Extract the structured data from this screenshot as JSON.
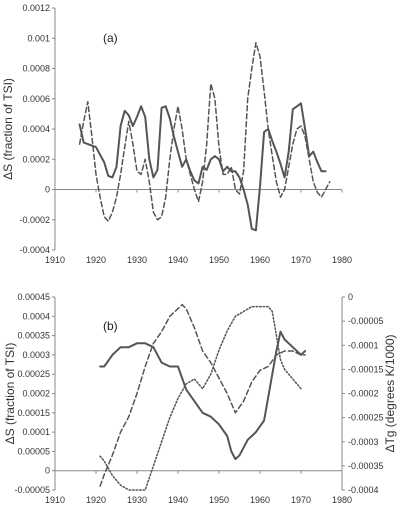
{
  "chart_data": [
    {
      "type": "line",
      "panel_label": "(a)",
      "ylabel": "ΔS (fraction of TSI)",
      "xlabel": "",
      "xlim": [
        1910,
        1980
      ],
      "ylim": [
        -0.0004,
        0.0012
      ],
      "xticks": [
        1910,
        1920,
        1930,
        1940,
        1950,
        1960,
        1970,
        1980
      ],
      "xtick_labels": [
        "1910",
        "1920",
        "1930",
        "1940",
        "1950",
        "1960",
        "1970",
        "1980"
      ],
      "yticks": [
        -0.0004,
        -0.0002,
        0,
        0.0002,
        0.0004,
        0.0006,
        0.0008,
        0.001,
        0.0012
      ],
      "ytick_labels": [
        "-0.0004",
        "-0.0002",
        "0",
        "0.0002",
        "0.0004",
        "0.0006",
        "0.0008",
        "0.001",
        "0.0012"
      ],
      "grid": false,
      "legend": "none",
      "series": [
        {
          "style": "solid",
          "color": "#555555",
          "x": [
            1916,
            1917,
            1920,
            1922,
            1923,
            1924,
            1925,
            1926,
            1927,
            1928,
            1929,
            1930,
            1931,
            1932,
            1933,
            1934,
            1935,
            1936,
            1937,
            1938,
            1939,
            1940,
            1941,
            1942,
            1943,
            1944,
            1945,
            1946,
            1947,
            1948,
            1949,
            1950,
            1951,
            1952,
            1953,
            1954,
            1955,
            1956,
            1957,
            1958,
            1959,
            1960,
            1961,
            1962,
            1963,
            1964,
            1965,
            1966,
            1967,
            1968,
            1969,
            1970,
            1971,
            1972,
            1973,
            1974,
            1975,
            1976
          ],
          "values": [
            0.00043,
            0.00031,
            0.00028,
            0.00018,
            9e-05,
            8e-05,
            0.00015,
            0.00042,
            0.00052,
            0.00049,
            0.00042,
            0.00048,
            0.00055,
            0.00048,
            0.0002,
            8e-05,
            0.00013,
            0.00054,
            0.00055,
            0.00047,
            0.00035,
            0.00025,
            0.00015,
            0.0002,
            0.00012,
            6e-05,
            4e-05,
            0.00015,
            0.00013,
            0.0002,
            0.00022,
            0.0002,
            0.00012,
            0.00015,
            0.00012,
            0.00012,
            8e-05,
            0.0,
            -0.0001,
            -0.00026,
            -0.00027,
            2e-05,
            0.00038,
            0.0004,
            0.00032,
            0.00025,
            0.00017,
            8e-05,
            0.00025,
            0.00053,
            0.00055,
            0.00057,
            0.0004,
            0.00022,
            0.00025,
            0.00018,
            0.00012,
            0.00012
          ]
        },
        {
          "style": "dashed",
          "color": "#555555",
          "x": [
            1916,
            1917,
            1918,
            1919,
            1920,
            1921,
            1922,
            1923,
            1924,
            1925,
            1926,
            1927,
            1928,
            1929,
            1930,
            1931,
            1932,
            1933,
            1934,
            1935,
            1936,
            1937,
            1938,
            1939,
            1940,
            1941,
            1942,
            1943,
            1944,
            1945,
            1946,
            1947,
            1948,
            1949,
            1950,
            1951,
            1952,
            1953,
            1954,
            1955,
            1956,
            1957,
            1958,
            1959,
            1960,
            1961,
            1962,
            1963,
            1964,
            1965,
            1966,
            1967,
            1968,
            1969,
            1970,
            1971,
            1972,
            1973,
            1974,
            1975,
            1976,
            1977
          ],
          "values": [
            0.0003,
            0.00045,
            0.00058,
            0.00035,
            0.0001,
            -5e-05,
            -0.00018,
            -0.00021,
            -0.00015,
            -5e-05,
            0.0001,
            0.00028,
            0.00045,
            0.0003,
            0.00012,
            0.0001,
            0.0002,
            5e-05,
            -0.00015,
            -0.0002,
            -0.00018,
            -5e-05,
            0.0002,
            0.0004,
            0.00055,
            0.0004,
            0.0002,
            0.0001,
            0.0,
            -8e-05,
            5e-05,
            0.0003,
            0.0007,
            0.0006,
            0.00028,
            0.0001,
            0.0001,
            0.00015,
            0.0,
            -3e-05,
            0.00012,
            0.0006,
            0.0008,
            0.00097,
            0.00088,
            0.00065,
            0.0004,
            0.00022,
            5e-05,
            -5e-05,
            0.0,
            0.00015,
            0.0003,
            0.0004,
            0.00042,
            0.00035,
            0.0002,
            5e-05,
            -2e-05,
            -5e-05,
            0.0,
            5e-05
          ]
        }
      ]
    },
    {
      "type": "line",
      "panel_label": "(b)",
      "ylabel": "ΔS (fraction of TSI)",
      "y2label": "ΔTg (degrees K/1000)",
      "xlabel": "",
      "xlim": [
        1910,
        1980
      ],
      "ylim": [
        -5e-05,
        0.00045
      ],
      "y2lim": [
        -0.0004,
        0
      ],
      "xticks": [
        1910,
        1920,
        1930,
        1940,
        1950,
        1960,
        1970,
        1980
      ],
      "xtick_labels": [
        "1910",
        "1920",
        "1930",
        "1940",
        "1950",
        "1960",
        "1970",
        "1980"
      ],
      "yticks": [
        -5e-05,
        0,
        5e-05,
        0.0001,
        0.00015,
        0.0002,
        0.00025,
        0.0003,
        0.00035,
        0.0004,
        0.00045
      ],
      "ytick_labels": [
        "-0.00005",
        "0",
        "0.00005",
        "0.0001",
        "0.00015",
        "0.0002",
        "0.00025",
        "0.0003",
        "0.00035",
        "0.0004",
        "0.00045"
      ],
      "y2ticks": [
        0,
        -5e-05,
        -0.0001,
        -0.00015,
        -0.0002,
        -0.00025,
        -0.0003,
        -0.00035,
        -0.0004
      ],
      "y2tick_labels": [
        "0",
        "-0.00005",
        "-0.0001",
        "-0.00015",
        "-0.0002",
        "-0.00025",
        "-0.0003",
        "-0.00035",
        "-0.0004"
      ],
      "grid": false,
      "legend": "none",
      "series": [
        {
          "style": "solid",
          "color": "#555555",
          "axis": "left",
          "x": [
            1921,
            1922,
            1924,
            1926,
            1928,
            1930,
            1932,
            1934,
            1936,
            1938,
            1940,
            1942,
            1944,
            1946,
            1948,
            1950,
            1952,
            1953,
            1954,
            1955,
            1957,
            1959,
            1961,
            1963,
            1964,
            1965,
            1966,
            1968,
            1970,
            1971
          ],
          "values": [
            0.00027,
            0.00027,
            0.0003,
            0.00032,
            0.00032,
            0.00033,
            0.00033,
            0.00032,
            0.00028,
            0.00027,
            0.00027,
            0.00021,
            0.00018,
            0.00015,
            0.00014,
            0.00012,
            9e-05,
            5e-05,
            3e-05,
            4e-05,
            8e-05,
            0.0001,
            0.00013,
            0.00025,
            0.00031,
            0.00036,
            0.00034,
            0.00032,
            0.0003,
            0.00031
          ]
        },
        {
          "style": "dashed",
          "color": "#555555",
          "axis": "left",
          "x": [
            1921,
            1922,
            1924,
            1926,
            1928,
            1930,
            1932,
            1934,
            1936,
            1938,
            1940,
            1941,
            1942,
            1944,
            1946,
            1948,
            1950,
            1952,
            1954,
            1956,
            1958,
            1960,
            1962,
            1964,
            1966,
            1968,
            1970,
            1971
          ],
          "values": [
            -4e-05,
            -1e-05,
            4e-05,
            0.0001,
            0.00014,
            0.0002,
            0.00027,
            0.00033,
            0.00036,
            0.0004,
            0.00042,
            0.00043,
            0.00042,
            0.00037,
            0.00031,
            0.00028,
            0.00024,
            0.0002,
            0.00015,
            0.00018,
            0.00023,
            0.00026,
            0.00027,
            0.0003,
            0.00031,
            0.00031,
            0.0003,
            0.0003
          ]
        },
        {
          "style": "dotted",
          "color": "#555555",
          "axis": "right",
          "x": [
            1921,
            1922,
            1924,
            1926,
            1928,
            1930,
            1932,
            1934,
            1936,
            1938,
            1940,
            1942,
            1944,
            1946,
            1948,
            1950,
            1952,
            1954,
            1956,
            1958,
            1960,
            1962,
            1963,
            1964,
            1965,
            1966,
            1967,
            1968,
            1969,
            1970
          ],
          "values": [
            -0.00033,
            -0.00034,
            -0.00037,
            -0.00039,
            -0.0004,
            -0.0004,
            -0.0004,
            -0.00035,
            -0.0003,
            -0.00025,
            -0.00021,
            -0.00018,
            -0.00017,
            -0.00019,
            -0.00016,
            -0.00011,
            -7e-05,
            -4e-05,
            -3e-05,
            -2e-05,
            -2e-05,
            -2e-05,
            -3e-05,
            -8e-05,
            -0.00013,
            -0.00015,
            -0.00016,
            -0.00017,
            -0.00018,
            -0.00019
          ]
        }
      ]
    }
  ]
}
